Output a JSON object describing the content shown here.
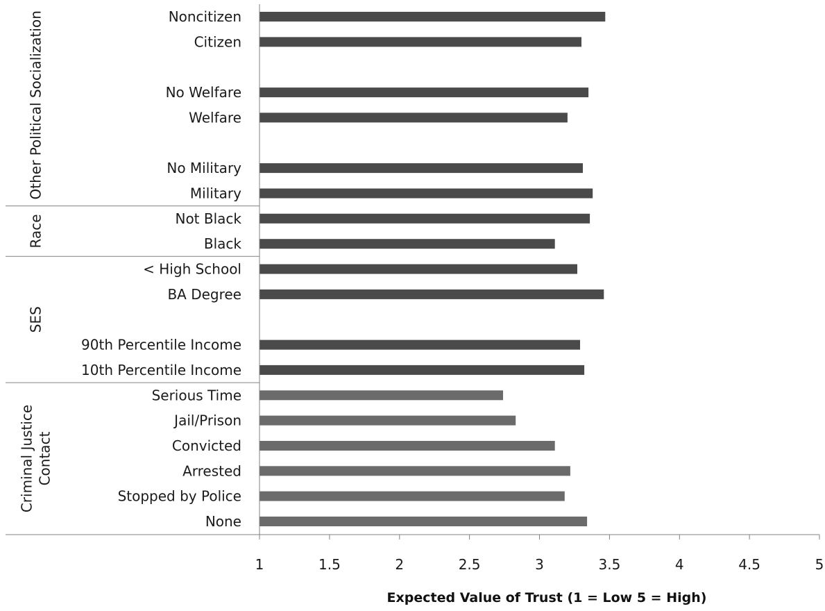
{
  "chart_data": {
    "type": "bar",
    "orientation": "horizontal",
    "xlabel": "Expected Value of Trust (1 =  Low 5 = High)",
    "xlim": [
      1,
      5
    ],
    "xticks": [
      1,
      1.5,
      2,
      2.5,
      3,
      3.5,
      4,
      4.5,
      5
    ],
    "xtick_labels": [
      "1",
      "1.5",
      "2",
      "2.5",
      "3",
      "3.5",
      "4",
      "4.5",
      "5"
    ],
    "grid": false,
    "bars": [
      {
        "label": "Noncitizen",
        "value": 3.47,
        "color": "#4a4a4a"
      },
      {
        "label": "Citizen",
        "value": 3.3,
        "color": "#4a4a4a"
      },
      {
        "label": "",
        "value": null
      },
      {
        "label": "No Welfare",
        "value": 3.35,
        "color": "#4a4a4a"
      },
      {
        "label": "Welfare",
        "value": 3.2,
        "color": "#4a4a4a"
      },
      {
        "label": "",
        "value": null
      },
      {
        "label": "No Military",
        "value": 3.31,
        "color": "#4a4a4a"
      },
      {
        "label": "Military",
        "value": 3.38,
        "color": "#4a4a4a"
      },
      {
        "label": "Not Black",
        "value": 3.36,
        "color": "#4a4a4a"
      },
      {
        "label": "Black",
        "value": 3.11,
        "color": "#4a4a4a"
      },
      {
        "label": "< High School",
        "value": 3.27,
        "color": "#4a4a4a"
      },
      {
        "label": "BA Degree",
        "value": 3.46,
        "color": "#4a4a4a"
      },
      {
        "label": "",
        "value": null
      },
      {
        "label": "90th Percentile Income",
        "value": 3.29,
        "color": "#4a4a4a"
      },
      {
        "label": "10th Percentile Income",
        "value": 3.32,
        "color": "#4a4a4a"
      },
      {
        "label": "Serious Time",
        "value": 2.74,
        "color": "#6b6b6b"
      },
      {
        "label": "Jail/Prison",
        "value": 2.83,
        "color": "#6b6b6b"
      },
      {
        "label": "Convicted",
        "value": 3.11,
        "color": "#6b6b6b"
      },
      {
        "label": "Arrested",
        "value": 3.22,
        "color": "#6b6b6b"
      },
      {
        "label": "Stopped by Police",
        "value": 3.18,
        "color": "#6b6b6b"
      },
      {
        "label": "None",
        "value": 3.34,
        "color": "#6b6b6b"
      }
    ],
    "groups": [
      {
        "lines": [
          "Other Political Socialization"
        ],
        "first": 0,
        "last": 7
      },
      {
        "lines": [
          "Race"
        ],
        "first": 8,
        "last": 9
      },
      {
        "lines": [
          "SES"
        ],
        "first": 10,
        "last": 14
      },
      {
        "lines": [
          "Criminal  Justice",
          "Contact"
        ],
        "first": 15,
        "last": 20
      }
    ]
  }
}
